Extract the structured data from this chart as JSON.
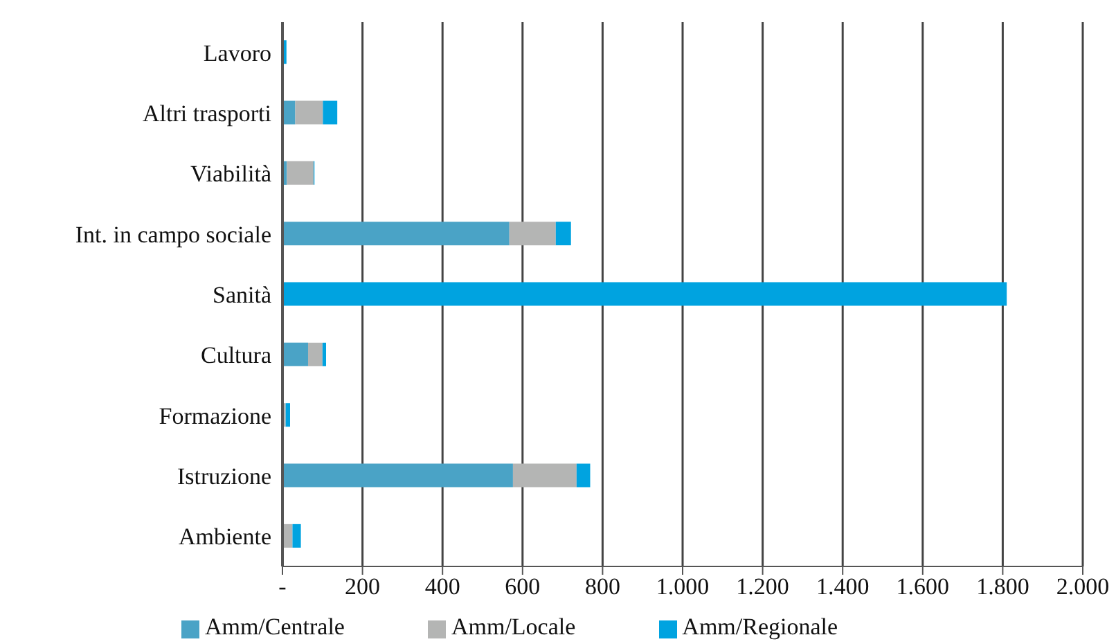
{
  "chart_data": {
    "type": "bar",
    "orientation": "horizontal",
    "stacked": true,
    "categories": [
      "Lavoro",
      "Altri trasporti",
      "Viabilità",
      "Int. in campo sociale",
      "Sanità",
      "Cultura",
      "Formazione",
      "Istruzione",
      "Ambiente"
    ],
    "series": [
      {
        "name": "Amm/Centrale",
        "color": "#4aa3c6",
        "values": [
          null,
          32,
          11,
          567,
          null,
          64,
          null,
          576,
          null
        ]
      },
      {
        "name": "Amm/Locale",
        "color": "#b4b5b4",
        "values": [
          0,
          69,
          67,
          116,
          null,
          36,
          8,
          159,
          25
        ]
      },
      {
        "name": "Amm/Regionale",
        "color": "#00a3e0",
        "values": [
          10,
          36,
          2,
          38,
          1810,
          9,
          11,
          34,
          21
        ]
      }
    ],
    "xlim": [
      0,
      2000
    ],
    "xticks": [
      {
        "value": 0,
        "label": "-"
      },
      {
        "value": 200,
        "label": "200"
      },
      {
        "value": 400,
        "label": "400"
      },
      {
        "value": 600,
        "label": "600"
      },
      {
        "value": 800,
        "label": "800"
      },
      {
        "value": 1000,
        "label": "1.000"
      },
      {
        "value": 1200,
        "label": "1.200"
      },
      {
        "value": 1400,
        "label": "1.400"
      },
      {
        "value": 1600,
        "label": "1.600"
      },
      {
        "value": 1800,
        "label": "1.800"
      },
      {
        "value": 2000,
        "label": "2.000"
      }
    ],
    "grid": "x",
    "legend": "bottom"
  }
}
